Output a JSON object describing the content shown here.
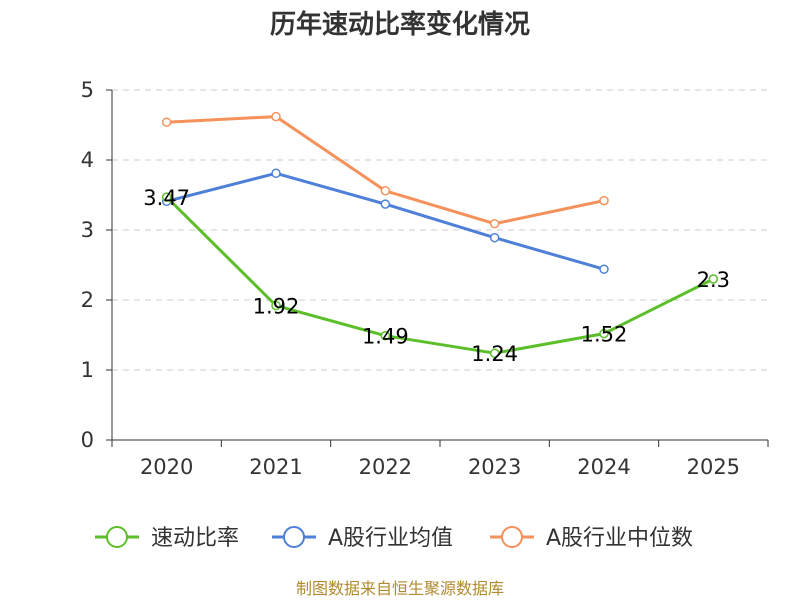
{
  "chart_data": {
    "type": "line",
    "title": "历年速动比率变化情况",
    "categories": [
      "2020",
      "2021",
      "2022",
      "2023",
      "2024",
      "2025"
    ],
    "ylim": [
      0,
      5
    ],
    "yticks": [
      0,
      1,
      2,
      3,
      4,
      5
    ],
    "grid": true,
    "legend_position": "bottom",
    "series": [
      {
        "name": "速动比率",
        "color": "#5cbf2a",
        "values": [
          3.47,
          1.92,
          1.49,
          1.24,
          1.52,
          2.3
        ],
        "labels": [
          "3.47",
          "1.92",
          "1.49",
          "1.24",
          "1.52",
          "2.3"
        ]
      },
      {
        "name": "A股行业均值",
        "color": "#4e7fd9",
        "values": [
          3.41,
          3.81,
          3.37,
          2.89,
          2.44,
          null
        ]
      },
      {
        "name": "A股行业中位数",
        "color": "#f5915a",
        "values": [
          4.54,
          4.62,
          3.56,
          3.09,
          3.42,
          null
        ]
      }
    ]
  },
  "source": "制图数据来自恒生聚源数据库"
}
